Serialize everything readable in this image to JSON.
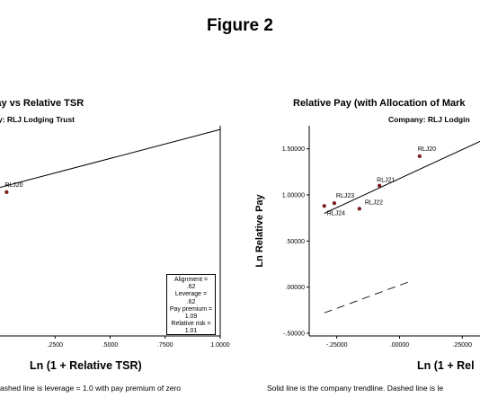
{
  "figure_title": "Figure 2",
  "chart_data": [
    {
      "type": "scatter",
      "title": "Pay vs Relative TSR",
      "subtitle": "y: RLJ Lodging Trust",
      "xlabel": "Ln (1 + Relative TSR)",
      "caption": "ashed line is leverage = 1.0 with pay premium of zero",
      "x_ticks": [
        ".2500",
        ".5000",
        ".7500",
        "1.0000"
      ],
      "xlim": [
        0.0,
        1.0
      ],
      "ylim": [
        -0.5,
        1.75
      ],
      "points": [
        {
          "label": "RLJ20",
          "x": 0.03,
          "y": 1.04
        }
      ],
      "trendline": {
        "x": [
          0.0,
          1.0
        ],
        "y": [
          1.09,
          1.71
        ]
      },
      "stats": [
        "Alignment =",
        ".62",
        "Leverage =",
        ".62",
        "Pay premium =",
        "1.09",
        "Relative risk =",
        "1.01"
      ]
    },
    {
      "type": "scatter",
      "title": "Relative Pay (with Allocation of Mark",
      "subtitle": "Company: RLJ Lodgin",
      "xlabel": "Ln (1 + Rel",
      "ylabel": "Ln Relative Pay",
      "caption": "Solid line is the company trendline.  Dashed line is le",
      "x_ticks": [
        "-.25000",
        ".00000",
        ".25000"
      ],
      "y_ticks": [
        "1.50000",
        "1.00000",
        ".50000",
        ".00000",
        "-.50000"
      ],
      "xlim": [
        -0.36,
        0.36
      ],
      "ylim": [
        -0.53,
        1.75
      ],
      "points": [
        {
          "label": "RLJ20",
          "x": 0.08,
          "y": 1.42
        },
        {
          "label": "RLJ21",
          "x": -0.08,
          "y": 1.1
        },
        {
          "label": "RLJ22",
          "x": -0.16,
          "y": 0.85
        },
        {
          "label": "RLJ23",
          "x": -0.26,
          "y": 0.91
        },
        {
          "label": "RLJ24",
          "x": -0.3,
          "y": 0.88
        }
      ],
      "trendline": {
        "x": [
          -0.3,
          0.36
        ],
        "y": [
          0.8,
          1.63
        ]
      },
      "leverage_line": {
        "x": [
          -0.3,
          0.05
        ],
        "y": [
          -0.28,
          0.07
        ]
      }
    }
  ]
}
